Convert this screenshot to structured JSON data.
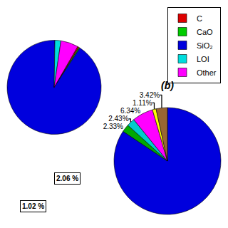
{
  "chart_data": [
    {
      "type": "pie",
      "categories": [
        "C",
        "CaO",
        "SiO₂",
        "LOI",
        "Other"
      ],
      "values": [
        0.5,
        0.4,
        91.02,
        2.06,
        6.02
      ],
      "colors": [
        "#dd0000",
        "#00cc00",
        "#0000dd",
        "#00dddd",
        "#ff00ff"
      ],
      "legend": "upper right",
      "annotations": [
        "2.06 %",
        "1.02 %"
      ]
    },
    {
      "type": "pie",
      "title": "(b)",
      "values": [
        84.37,
        2.33,
        2.43,
        6.34,
        1.11,
        3.42
      ],
      "value_labels": [
        null,
        "2.33%",
        "2.43%",
        "6.34%",
        "1.11%",
        "3.42%"
      ],
      "colors": [
        "#0000dd",
        "#00aa00",
        "#00cccc",
        "#ff00ff",
        "#ffff00",
        "#996633"
      ],
      "data_labels": true
    }
  ]
}
